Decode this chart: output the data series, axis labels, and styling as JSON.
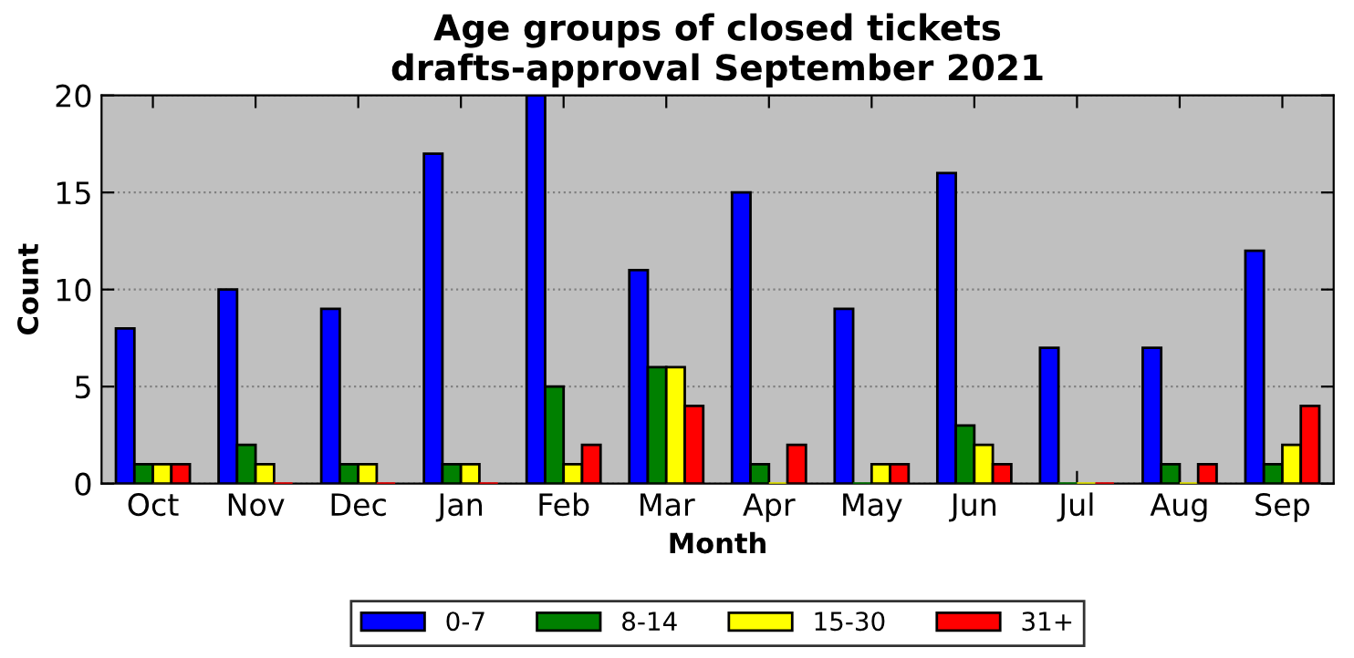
{
  "chart_data": {
    "type": "bar",
    "title": "Age groups of closed tickets\ndrafts-approval September 2021",
    "xlabel": "Month",
    "ylabel": "Count",
    "categories": [
      "Oct",
      "Nov",
      "Dec",
      "Jan",
      "Feb",
      "Mar",
      "Apr",
      "May",
      "Jun",
      "Jul",
      "Aug",
      "Sep"
    ],
    "series": [
      {
        "name": "0-7",
        "color": "#0000ff",
        "values": [
          8,
          10,
          9,
          17,
          20,
          11,
          15,
          9,
          16,
          7,
          7,
          12
        ]
      },
      {
        "name": "8-14",
        "color": "#008000",
        "values": [
          1,
          2,
          1,
          1,
          5,
          6,
          1,
          0,
          3,
          0,
          1,
          1
        ]
      },
      {
        "name": "15-30",
        "color": "#ffff00",
        "values": [
          1,
          1,
          1,
          1,
          1,
          6,
          0,
          1,
          2,
          0,
          0,
          2
        ]
      },
      {
        "name": "31+",
        "color": "#ff0000",
        "values": [
          1,
          0,
          0,
          0,
          2,
          4,
          2,
          1,
          1,
          0,
          1,
          4
        ]
      }
    ],
    "ylim": [
      0,
      20
    ],
    "yticks": [
      0,
      5,
      10,
      15,
      20
    ],
    "grid": "y",
    "legend": "bottom"
  }
}
